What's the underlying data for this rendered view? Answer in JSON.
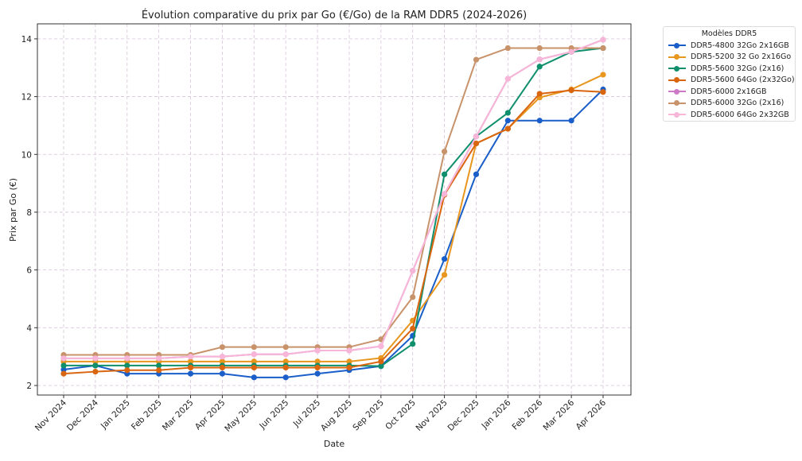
{
  "chart_data": {
    "type": "line",
    "title": "Évolution comparative du prix par Go (€/Go) de la RAM DDR5 (2024-2026)",
    "xlabel": "Date",
    "ylabel": "Prix par Go (€)",
    "ylim": [
      1.67,
      14.52
    ],
    "yticks": [
      2,
      4,
      6,
      8,
      10,
      12,
      14
    ],
    "grid": true,
    "legend_title": "Modèles DDR5",
    "legend_placement": "outside-top-right",
    "categories": [
      "Nov 2024",
      "Dec 2024",
      "Jan 2025",
      "Feb 2025",
      "Mar 2025",
      "Apr 2025",
      "May 2025",
      "Jun 2025",
      "Jul 2025",
      "Aug 2025",
      "Sep 2025",
      "Oct 2025",
      "Nov 2025",
      "Dec 2025",
      "Jan 2026",
      "Feb 2026",
      "Mar 2026",
      "Apr 2026"
    ],
    "series": [
      {
        "name": "DDR5-4800 32Go 2x16GB",
        "color": "#1a5fc9",
        "values": [
          2.55,
          2.69,
          2.41,
          2.41,
          2.41,
          2.41,
          2.28,
          2.28,
          2.41,
          2.53,
          2.67,
          3.72,
          6.38,
          9.31,
          11.17,
          11.17,
          11.17,
          12.25
        ]
      },
      {
        "name": "DDR5-5200 32 Go 2x16Go",
        "color": "#e8961e",
        "values": [
          2.83,
          2.83,
          2.83,
          2.83,
          2.83,
          2.83,
          2.83,
          2.83,
          2.83,
          2.83,
          2.95,
          4.25,
          5.83,
          10.38,
          10.89,
          11.97,
          12.25,
          12.76
        ]
      },
      {
        "name": "DDR5-5600 32Go (2x16)",
        "color": "#0f8f6c",
        "values": [
          2.69,
          2.69,
          2.69,
          2.69,
          2.69,
          2.69,
          2.69,
          2.69,
          2.69,
          2.69,
          2.67,
          3.44,
          9.31,
          10.62,
          11.44,
          13.04,
          13.55,
          13.68
        ]
      },
      {
        "name": "DDR5-5600 64Go (2x32Go)",
        "color": "#d9650f",
        "values": [
          2.41,
          2.48,
          2.53,
          2.53,
          2.62,
          2.62,
          2.62,
          2.62,
          2.62,
          2.62,
          2.83,
          3.97,
          8.6,
          10.38,
          10.89,
          12.1,
          12.22,
          12.16
        ]
      },
      {
        "name": "DDR5-6000 2x16GB",
        "color": "#cc79c8",
        "values": [
          2.94,
          2.94,
          2.94,
          2.94,
          3.0,
          3.0,
          3.08,
          3.08,
          3.21,
          3.21,
          3.36,
          5.97,
          8.63,
          10.62,
          12.62,
          13.29,
          13.55,
          13.97
        ]
      },
      {
        "name": "DDR5-6000 32Go (2x16)",
        "color": "#c8936a",
        "values": [
          3.06,
          3.06,
          3.06,
          3.06,
          3.06,
          3.33,
          3.33,
          3.33,
          3.33,
          3.33,
          3.6,
          5.06,
          10.1,
          13.28,
          13.68,
          13.68,
          13.68,
          13.68
        ]
      },
      {
        "name": "DDR5-6000 64Go 2x32GB",
        "color": "#f7b6d8",
        "values": [
          2.94,
          2.94,
          2.94,
          2.94,
          3.0,
          3.0,
          3.08,
          3.08,
          3.21,
          3.21,
          3.36,
          5.97,
          8.63,
          10.62,
          12.62,
          13.29,
          13.55,
          13.97
        ]
      }
    ]
  }
}
